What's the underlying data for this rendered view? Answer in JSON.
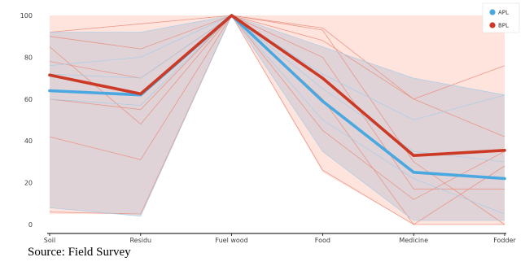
{
  "chart_data": {
    "type": "line",
    "title": "",
    "xlabel": "",
    "ylabel": "",
    "categories": [
      "Soil",
      "Residu",
      "Fuel wood",
      "Food",
      "Medicine",
      "Fodder"
    ],
    "ylim": [
      0,
      100
    ],
    "yticks": [
      0,
      20,
      40,
      60,
      80,
      100
    ],
    "grid": false,
    "legend": "top-right",
    "series": [
      {
        "name": "APL",
        "color": "#4aa8e0",
        "values": [
          64,
          62,
          100,
          59,
          25,
          22
        ]
      },
      {
        "name": "BPL",
        "color": "#cc3a26",
        "values": [
          71.5,
          62.5,
          100,
          70,
          33,
          35.5
        ]
      }
    ],
    "bands": [
      {
        "series": "BPL",
        "color": "#ff9e8a",
        "lower": [
          5,
          5,
          100,
          25,
          0,
          0
        ],
        "upper": [
          100,
          100,
          100,
          100,
          100,
          100
        ]
      },
      {
        "series": "APL",
        "color": "#8fa8c8",
        "lower": [
          8,
          4,
          100,
          35,
          2,
          2
        ],
        "upper": [
          92,
          92,
          100,
          85,
          70,
          62
        ]
      }
    ],
    "individual_lines": [
      {
        "series": "BPL",
        "values": [
          92,
          96,
          100,
          93,
          30,
          0
        ]
      },
      {
        "series": "BPL",
        "values": [
          85,
          48,
          100,
          88,
          60,
          76
        ]
      },
      {
        "series": "BPL",
        "values": [
          42,
          31,
          100,
          80,
          17,
          17
        ]
      },
      {
        "series": "BPL",
        "values": [
          90,
          84,
          100,
          60,
          0,
          28
        ]
      },
      {
        "series": "BPL",
        "values": [
          6,
          5,
          100,
          26,
          0,
          0
        ]
      },
      {
        "series": "BPL",
        "values": [
          78,
          70,
          100,
          45,
          12,
          35
        ]
      },
      {
        "series": "BPL",
        "values": [
          60,
          55,
          100,
          94,
          60,
          42
        ]
      },
      {
        "series": "APL",
        "values": [
          92,
          92,
          100,
          85,
          70,
          62
        ]
      },
      {
        "series": "APL",
        "values": [
          76,
          80,
          100,
          72,
          50,
          62
        ]
      },
      {
        "series": "APL",
        "values": [
          8,
          4,
          100,
          35,
          2,
          2
        ]
      },
      {
        "series": "APL",
        "values": [
          60,
          57,
          100,
          50,
          22,
          5
        ]
      },
      {
        "series": "APL",
        "values": [
          72,
          70,
          100,
          65,
          35,
          30
        ]
      }
    ]
  },
  "source": "Source: Field Survey"
}
